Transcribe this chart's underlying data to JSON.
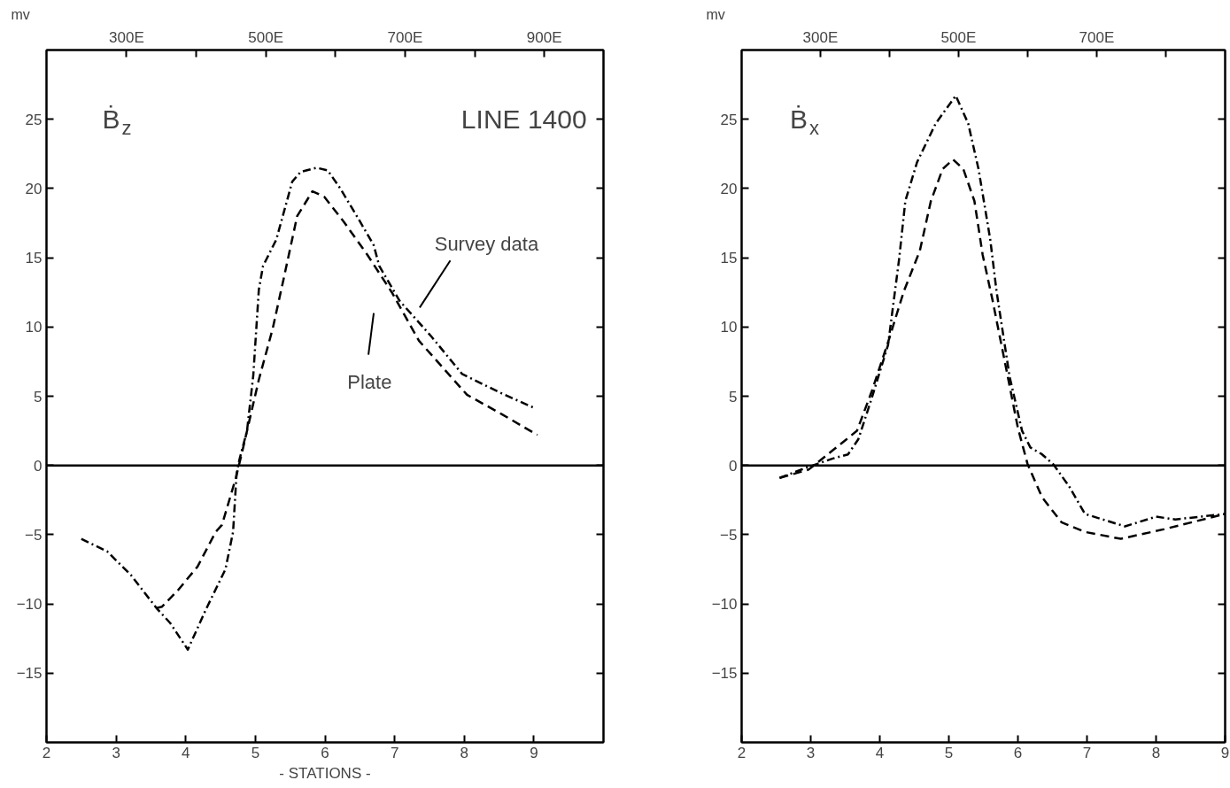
{
  "chart_data": [
    {
      "type": "line",
      "ylabel": "mv",
      "xlabel": "- STATIONS -",
      "grid": false,
      "annotations": [
        "Ḃ$_{z}$",
        "LINE 1400",
        "Survey data",
        "Plate"
      ],
      "xlim": [
        2,
        10
      ],
      "xticks": [
        2,
        3,
        4,
        5,
        6,
        7,
        8,
        9
      ],
      "x2lim": [
        185,
        985
      ],
      "x2ticks": [
        {
          "value": 300,
          "label": "300E"
        },
        {
          "value": 400,
          "label": null
        },
        {
          "value": 500,
          "label": "500E"
        },
        {
          "value": 600,
          "label": null
        },
        {
          "value": 700,
          "label": "700E"
        },
        {
          "value": 800,
          "label": null
        },
        {
          "value": 900,
          "label": "900E"
        }
      ],
      "ylim": [
        -20,
        30
      ],
      "yticks": [
        -15,
        -10,
        -5,
        0,
        5,
        10,
        15,
        20,
        25
      ],
      "ref_lines": [
        {
          "axis": "y",
          "value": 0,
          "label": null,
          "color": "#000000"
        }
      ],
      "series": [
        {
          "color": "#000000",
          "line_style": "dashdot",
          "x": [
            2.5,
            2.87,
            3.21,
            3.58,
            3.78,
            4.03,
            4.29,
            4.57,
            4.68,
            4.73,
            4.77,
            4.88,
            4.97,
            5.05,
            5.11,
            5.3,
            5.53,
            5.65,
            5.88,
            6.04,
            6.22,
            6.47,
            6.7,
            6.78,
            7.07,
            7.53,
            7.97,
            8.54,
            9.03
          ],
          "values": [
            -5.3,
            -6.2,
            -7.9,
            -10.3,
            -11.4,
            -13.3,
            -10.4,
            -7.5,
            -4.8,
            -0.6,
            0.4,
            2.5,
            6.5,
            12.7,
            14.4,
            16.3,
            20.5,
            21.2,
            21.5,
            21.3,
            20.0,
            17.9,
            15.9,
            14.4,
            11.9,
            9.3,
            6.6,
            5.2,
            4.1
          ]
        },
        {
          "color": "#000000",
          "line_style": "dashed",
          "x": [
            3.58,
            3.66,
            3.89,
            4.17,
            4.43,
            4.52,
            4.72,
            4.83,
            5.05,
            5.25,
            5.42,
            5.6,
            5.82,
            5.99,
            6.27,
            6.61,
            6.96,
            7.35,
            8.04,
            8.54,
            9.05
          ],
          "values": [
            -10.3,
            -10.2,
            -9.0,
            -7.3,
            -4.8,
            -4.3,
            -0.9,
            1.4,
            6.2,
            9.9,
            13.8,
            18.0,
            19.8,
            19.4,
            17.6,
            15.2,
            12.5,
            9.0,
            5.1,
            3.7,
            2.2
          ]
        }
      ]
    },
    {
      "type": "line",
      "ylabel": "mv",
      "grid": false,
      "annotations": [
        "Ḃ$_{x}$"
      ],
      "xlim": [
        2,
        9
      ],
      "xticks": [
        2,
        3,
        4,
        5,
        6,
        7,
        8,
        9
      ],
      "x2lim": [
        186,
        886
      ],
      "x2ticks": [
        {
          "value": 300,
          "label": "300E"
        },
        {
          "value": 400,
          "label": null
        },
        {
          "value": 500,
          "label": "500E"
        },
        {
          "value": 600,
          "label": null
        },
        {
          "value": 700,
          "label": "700E"
        },
        {
          "value": 800,
          "label": null
        }
      ],
      "ylim": [
        -20,
        30
      ],
      "yticks": [
        -15,
        -10,
        -5,
        0,
        5,
        10,
        15,
        20,
        25
      ],
      "ref_lines": [
        {
          "axis": "y",
          "value": 0,
          "label": null,
          "color": "#000000"
        }
      ],
      "series": [
        {
          "color": "#000000",
          "line_style": "dashdot",
          "x": [
            2.55,
            2.97,
            3.32,
            3.54,
            3.69,
            3.88,
            4.12,
            4.28,
            4.37,
            4.54,
            4.81,
            5.1,
            5.28,
            5.43,
            5.6,
            5.69,
            5.88,
            6.06,
            6.18,
            6.35,
            6.51,
            6.74,
            6.97,
            7.55,
            8.0,
            8.28,
            9.0
          ],
          "values": [
            -0.9,
            -0.1,
            0.5,
            0.8,
            1.9,
            4.8,
            8.7,
            14.9,
            19.1,
            21.9,
            24.7,
            26.7,
            24.7,
            21.4,
            16.3,
            12.6,
            6.4,
            2.5,
            1.3,
            0.8,
            0.1,
            -1.5,
            -3.5,
            -4.4,
            -3.7,
            -3.9,
            -3.5
          ]
        },
        {
          "color": "#000000",
          "line_style": "dashed",
          "x": [
            2.55,
            2.97,
            3.32,
            3.67,
            3.88,
            4.12,
            4.35,
            4.58,
            4.74,
            4.91,
            5.06,
            5.21,
            5.37,
            5.49,
            5.63,
            5.83,
            6.0,
            6.14,
            6.35,
            6.63,
            6.97,
            7.49,
            8.12,
            9.0
          ],
          "values": [
            -0.9,
            -0.3,
            1.1,
            2.5,
            5.3,
            8.9,
            12.6,
            15.5,
            19.1,
            21.4,
            22.1,
            21.4,
            19.1,
            15.2,
            12.0,
            7.0,
            2.7,
            0.1,
            -2.3,
            -4.1,
            -4.8,
            -5.3,
            -4.6,
            -3.5
          ]
        }
      ]
    }
  ]
}
